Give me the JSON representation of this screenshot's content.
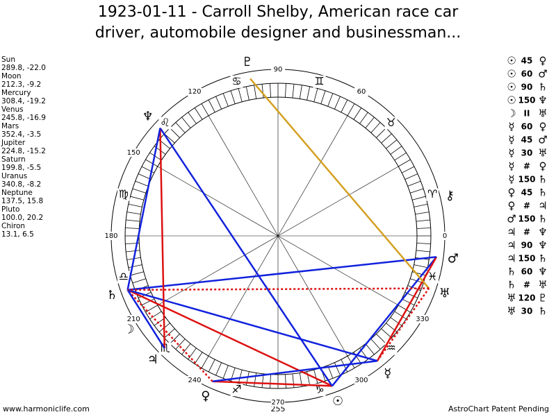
{
  "header": {
    "title_line1": "1923-01-11 - Carroll Shelby, American race car",
    "title_line2": "driver, automobile designer and businessman..."
  },
  "planets": [
    {
      "name": "Sun",
      "glyph": "☉",
      "lon": 289.8,
      "decl": {
        "value": -22,
        "label": "-22.0"
      }
    },
    {
      "name": "Moon",
      "glyph": "☽",
      "lon": 212.3,
      "decl": -9.2
    },
    {
      "name": "Mercury",
      "glyph": "☿",
      "lon": 308.4,
      "decl": -19.2
    },
    {
      "name": "Venus",
      "glyph": "♀",
      "lon": 245.8,
      "decl": -16.9
    },
    {
      "name": "Mars",
      "glyph": "♂",
      "lon": 352.4,
      "decl": -3.5
    },
    {
      "name": "Jupiter",
      "glyph": "♃",
      "lon": 224.8,
      "decl": -15.2
    },
    {
      "name": "Saturn",
      "glyph": "♄",
      "lon": 199.8,
      "decl": -5.5
    },
    {
      "name": "Uranus",
      "glyph": "♅",
      "lon": 340.8,
      "decl": -8.2
    },
    {
      "name": "Neptune",
      "glyph": "♆",
      "lon": 137.5,
      "decl": 15.8
    },
    {
      "name": "Pluto",
      "glyph": "♇",
      "lon": {
        "value": 100,
        "label": "100.0"
      },
      "decl": 20.2
    },
    {
      "name": "Chiron",
      "glyph": "⚷",
      "lon": 13.1,
      "decl": 6.5
    }
  ],
  "signs": [
    "♈",
    "♉",
    "♊",
    "♋",
    "♌",
    "♍",
    "♎",
    "♏",
    "♐",
    "♑",
    "♒",
    "♓"
  ],
  "degree_labels": [
    0,
    60,
    90,
    120,
    150,
    180,
    210,
    240,
    270,
    300,
    330
  ],
  "aspects": [
    {
      "from": "☉",
      "aspect": 45,
      "to": "♀",
      "color": "#dd1111"
    },
    {
      "from": "☉",
      "aspect": 60,
      "to": "♂",
      "color": "#1122dd"
    },
    {
      "from": "☉",
      "aspect": 90,
      "to": "♄",
      "color": "#dd1111"
    },
    {
      "from": "☉",
      "aspect": 150,
      "to": "♆",
      "color": "#1122dd"
    },
    {
      "from": "☽",
      "aspect": "II",
      "to": "♅"
    },
    {
      "from": "☿",
      "aspect": 60,
      "to": "♀",
      "color": "#1122dd"
    },
    {
      "from": "☿",
      "aspect": 45,
      "to": "♂",
      "color": "#dd1111"
    },
    {
      "from": "☿",
      "aspect": 30,
      "to": "♅",
      "color": "#dd1111"
    },
    {
      "from": "☿",
      "aspect": "#",
      "to": "♀"
    },
    {
      "from": "☿",
      "aspect": 150,
      "to": "♄",
      "color": "#1122dd"
    },
    {
      "from": "♀",
      "aspect": 45,
      "to": "♄",
      "color": "#dd1111"
    },
    {
      "from": "♀",
      "aspect": "#",
      "to": "♃"
    },
    {
      "from": "♂",
      "aspect": 150,
      "to": "♄",
      "color": "#1122dd"
    },
    {
      "from": "♃",
      "aspect": "#",
      "to": "♆"
    },
    {
      "from": "♃",
      "aspect": 90,
      "to": "♆",
      "color": "#dd1111"
    },
    {
      "from": "♃",
      "aspect": 150,
      "to": "♄",
      "color": "#1122dd"
    },
    {
      "from": "♄",
      "aspect": 60,
      "to": "♆",
      "color": "#1122dd"
    },
    {
      "from": "♄",
      "aspect": "#",
      "to": "♅"
    },
    {
      "from": "♅",
      "aspect": 120,
      "to": "♇",
      "color": "#d4a020"
    },
    {
      "from": "♅",
      "aspect": 30,
      "to": "♄",
      "color": "#dd1111"
    }
  ],
  "footer": {
    "left": "www.harmoniclife.com",
    "center": "255",
    "right": "AstroChart Patent Pending"
  }
}
